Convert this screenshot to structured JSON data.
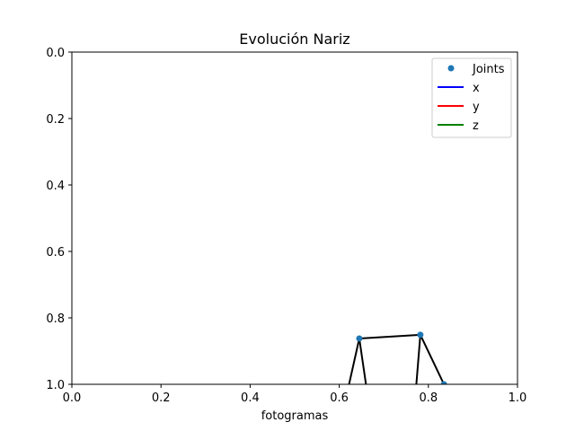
{
  "chart_data": {
    "type": "scatter",
    "title": "Evolución Nariz",
    "xlabel": "fotogramas",
    "ylabel": "",
    "xlim": [
      0.0,
      1.0
    ],
    "ylim": [
      0.0,
      1.0
    ],
    "y_inverted": true,
    "grid": false,
    "legend_placement": "top-right",
    "x_ticks": [
      "0.0",
      "0.2",
      "0.4",
      "0.6",
      "0.8",
      "1.0"
    ],
    "y_ticks": [
      "0.0",
      "0.2",
      "0.4",
      "0.6",
      "0.8",
      "1.0"
    ],
    "joints": [
      {
        "x": 0.645,
        "y": 0.862
      },
      {
        "x": 0.782,
        "y": 0.851
      },
      {
        "x": 0.835,
        "y": 1.0
      }
    ],
    "segments": [
      {
        "from": [
          0.622,
          1.0
        ],
        "to": [
          0.645,
          0.862
        ]
      },
      {
        "from": [
          0.645,
          0.862
        ],
        "to": [
          0.66,
          1.0
        ]
      },
      {
        "from": [
          0.645,
          0.862
        ],
        "to": [
          0.782,
          0.851
        ]
      },
      {
        "from": [
          0.782,
          0.851
        ],
        "to": [
          0.773,
          1.0
        ]
      },
      {
        "from": [
          0.782,
          0.851
        ],
        "to": [
          0.835,
          1.0
        ]
      }
    ],
    "legend": [
      {
        "name": "Joints",
        "kind": "marker",
        "color": "#1f77b4"
      },
      {
        "name": "x",
        "kind": "line",
        "color": "#0000ff"
      },
      {
        "name": "y",
        "kind": "line",
        "color": "#ff0000"
      },
      {
        "name": "z",
        "kind": "line",
        "color": "#008000"
      }
    ],
    "colors": {
      "joint_marker": "#1f77b4",
      "skeleton_line": "#000000"
    }
  }
}
